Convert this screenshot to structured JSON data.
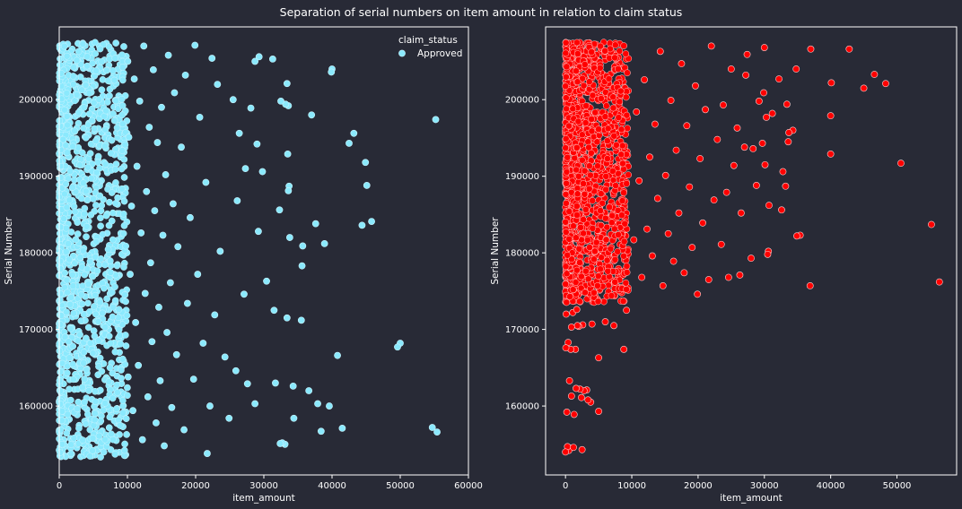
{
  "figure": {
    "title": "Separation of serial numbers on item amount in relation to claim status",
    "background": "#282a36",
    "text_color": "#ffffff"
  },
  "chart_data": [
    {
      "type": "scatter",
      "xlabel": "item_amount",
      "ylabel": "Serial Number",
      "xlim": [
        0,
        60000
      ],
      "ylim": [
        151000,
        209500
      ],
      "xticks": [
        "0",
        "10000",
        "20000",
        "30000",
        "40000",
        "50000",
        "60000"
      ],
      "yticks": [
        "160000",
        "170000",
        "180000",
        "190000",
        "200000"
      ],
      "grid": false,
      "legend": {
        "title": "claim_status",
        "position": "top-right",
        "entries": [
          "Approved"
        ]
      },
      "marker_color": "#8be9fd",
      "marker_edge": "#c8f4ff",
      "dense_region": {
        "x_max": 10000,
        "y_min": 153300,
        "y_max": 207500
      },
      "series": [
        {
          "name": "Approved",
          "points": [
            [
              55200,
              197400
            ],
            [
              55400,
              156600
            ],
            [
              54700,
              157200
            ],
            [
              50000,
              168200
            ],
            [
              49600,
              167700
            ],
            [
              45800,
              184100
            ],
            [
              45100,
              188800
            ],
            [
              44900,
              191800
            ],
            [
              44400,
              183600
            ],
            [
              43200,
              195600
            ],
            [
              42500,
              194300
            ],
            [
              41500,
              157100
            ],
            [
              40800,
              166600
            ],
            [
              40000,
              204000
            ],
            [
              39900,
              203600
            ],
            [
              39600,
              160000
            ],
            [
              38900,
              181200
            ],
            [
              38400,
              156700
            ],
            [
              37900,
              160300
            ],
            [
              37600,
              183800
            ],
            [
              37000,
              198000
            ],
            [
              36600,
              162000
            ],
            [
              35700,
              180900
            ],
            [
              35600,
              178300
            ],
            [
              35500,
              171200
            ],
            [
              34400,
              158400
            ],
            [
              34300,
              162600
            ],
            [
              33800,
              182000
            ],
            [
              33700,
              188700
            ],
            [
              33600,
              188100
            ],
            [
              33600,
              199200
            ],
            [
              33500,
              192900
            ],
            [
              33400,
              202100
            ],
            [
              33400,
              171500
            ],
            [
              33200,
              199400
            ],
            [
              33100,
              155000
            ],
            [
              32700,
              155200
            ],
            [
              32500,
              199800
            ],
            [
              32400,
              155100
            ],
            [
              32300,
              185600
            ],
            [
              31700,
              163000
            ],
            [
              31500,
              172500
            ],
            [
              31300,
              205300
            ],
            [
              30400,
              176300
            ],
            [
              29800,
              190600
            ],
            [
              29300,
              205600
            ],
            [
              29200,
              182800
            ],
            [
              29000,
              194200
            ],
            [
              28700,
              205000
            ],
            [
              28700,
              160300
            ],
            [
              28100,
              198900
            ],
            [
              27600,
              162900
            ],
            [
              27300,
              191000
            ],
            [
              27100,
              174600
            ],
            [
              26400,
              195600
            ],
            [
              26100,
              186800
            ],
            [
              25900,
              164600
            ],
            [
              25500,
              200000
            ],
            [
              24900,
              158400
            ],
            [
              24300,
              166400
            ],
            [
              23600,
              180200
            ],
            [
              23200,
              202000
            ],
            [
              22800,
              171900
            ],
            [
              22400,
              205400
            ],
            [
              22100,
              160000
            ],
            [
              21700,
              153800
            ],
            [
              21500,
              189200
            ],
            [
              21100,
              168200
            ],
            [
              20600,
              197700
            ],
            [
              20300,
              177200
            ],
            [
              19900,
              207100
            ],
            [
              19700,
              163500
            ],
            [
              19200,
              184600
            ],
            [
              18800,
              173400
            ],
            [
              18500,
              203200
            ],
            [
              18300,
              156900
            ],
            [
              17900,
              193800
            ],
            [
              17400,
              180800
            ],
            [
              17200,
              166700
            ],
            [
              16900,
              200900
            ],
            [
              16700,
              186400
            ],
            [
              16500,
              159800
            ],
            [
              16300,
              176100
            ],
            [
              16000,
              205800
            ],
            [
              15800,
              169600
            ],
            [
              15600,
              190200
            ],
            [
              15400,
              154800
            ],
            [
              15200,
              182300
            ],
            [
              15000,
              199000
            ],
            [
              14800,
              163300
            ],
            [
              14600,
              172900
            ],
            [
              14400,
              194400
            ],
            [
              14200,
              157800
            ],
            [
              14000,
              185500
            ],
            [
              13800,
              203900
            ],
            [
              13600,
              168400
            ],
            [
              13400,
              178700
            ],
            [
              13200,
              196400
            ],
            [
              13000,
              161200
            ],
            [
              12800,
              188000
            ],
            [
              12600,
              174700
            ],
            [
              12400,
              207000
            ],
            [
              12200,
              155600
            ],
            [
              12000,
              182600
            ],
            [
              11800,
              199800
            ],
            [
              11600,
              165300
            ],
            [
              11400,
              191300
            ],
            [
              11200,
              170900
            ],
            [
              11000,
              202700
            ],
            [
              10800,
              159400
            ],
            [
              10600,
              186100
            ],
            [
              10400,
              177200
            ],
            [
              10200,
              195100
            ],
            [
              10100,
              163800
            ],
            [
              10050,
              205000
            ]
          ]
        }
      ]
    },
    {
      "type": "scatter",
      "xlabel": "item_amount",
      "ylabel": "Serial Number",
      "xlim": [
        -3000,
        59000
      ],
      "ylim": [
        151000,
        209500
      ],
      "xticks": [
        "0",
        "10000",
        "20000",
        "30000",
        "40000",
        "50000"
      ],
      "yticks": [
        "160000",
        "170000",
        "180000",
        "190000",
        "200000"
      ],
      "grid": false,
      "marker_color": "#ff0000",
      "marker_edge": "#ffd0d0",
      "dense_region": {
        "x_max": 9500,
        "y_min": 173500,
        "y_max": 207500
      },
      "series": [
        {
          "name": "",
          "points": [
            [
              56400,
              176200
            ],
            [
              55200,
              183700
            ],
            [
              50600,
              191700
            ],
            [
              48300,
              202100
            ],
            [
              46600,
              203300
            ],
            [
              45000,
              201500
            ],
            [
              42800,
              206600
            ],
            [
              40100,
              202200
            ],
            [
              40000,
              197900
            ],
            [
              40000,
              192900
            ],
            [
              37000,
              206600
            ],
            [
              36900,
              175700
            ],
            [
              35400,
              182300
            ],
            [
              34900,
              182200
            ],
            [
              34800,
              204000
            ],
            [
              34300,
              196000
            ],
            [
              33700,
              195700
            ],
            [
              33600,
              194500
            ],
            [
              33400,
              199400
            ],
            [
              33200,
              188700
            ],
            [
              32800,
              190600
            ],
            [
              32600,
              185600
            ],
            [
              32200,
              202700
            ],
            [
              31200,
              198200
            ],
            [
              30700,
              186200
            ],
            [
              30600,
              180200
            ],
            [
              30500,
              179800
            ],
            [
              30300,
              197700
            ],
            [
              30100,
              191500
            ],
            [
              30000,
              206800
            ],
            [
              29900,
              200900
            ],
            [
              29700,
              194300
            ],
            [
              29200,
              199800
            ],
            [
              28800,
              188800
            ],
            [
              28300,
              193600
            ],
            [
              28000,
              179300
            ],
            [
              27400,
              205900
            ],
            [
              27200,
              203200
            ],
            [
              27000,
              193800
            ],
            [
              26500,
              185200
            ],
            [
              26300,
              177100
            ],
            [
              25900,
              196300
            ],
            [
              25400,
              191400
            ],
            [
              25000,
              204000
            ],
            [
              24600,
              176800
            ],
            [
              24300,
              187900
            ],
            [
              23800,
              199300
            ],
            [
              23500,
              181100
            ],
            [
              22900,
              194800
            ],
            [
              22400,
              186900
            ],
            [
              22000,
              207000
            ],
            [
              21600,
              176500
            ],
            [
              21100,
              198700
            ],
            [
              20700,
              183900
            ],
            [
              20300,
              192300
            ],
            [
              19900,
              174600
            ],
            [
              19600,
              201800
            ],
            [
              19100,
              180700
            ],
            [
              18700,
              188600
            ],
            [
              18300,
              196600
            ],
            [
              17900,
              177400
            ],
            [
              17500,
              204700
            ],
            [
              17100,
              185200
            ],
            [
              16700,
              193400
            ],
            [
              16300,
              178900
            ],
            [
              15900,
              199900
            ],
            [
              15500,
              182500
            ],
            [
              15100,
              190100
            ],
            [
              14700,
              175700
            ],
            [
              14300,
              206300
            ],
            [
              13900,
              187100
            ],
            [
              13500,
              196800
            ],
            [
              13100,
              179600
            ],
            [
              12700,
              192500
            ],
            [
              12300,
              183100
            ],
            [
              11900,
              202600
            ],
            [
              11500,
              176800
            ],
            [
              11100,
              189400
            ],
            [
              10700,
              198400
            ],
            [
              10300,
              181700
            ],
            [
              9200,
              172500
            ],
            [
              8800,
              167400
            ],
            [
              7300,
              170500
            ],
            [
              6000,
              171000
            ],
            [
              5000,
              166300
            ],
            [
              5000,
              159300
            ],
            [
              4000,
              170700
            ],
            [
              3800,
              160500
            ],
            [
              3400,
              160800
            ],
            [
              3200,
              162100
            ],
            [
              2800,
              162000
            ],
            [
              2600,
              170600
            ],
            [
              2400,
              161100
            ],
            [
              2200,
              162200
            ],
            [
              2000,
              170400
            ],
            [
              1800,
              170500
            ],
            [
              1600,
              162300
            ],
            [
              1500,
              167400
            ],
            [
              1300,
              158900
            ],
            [
              1100,
              172200
            ],
            [
              900,
              161300
            ],
            [
              800,
              167400
            ],
            [
              700,
              154500
            ],
            [
              600,
              163300
            ],
            [
              500,
              154200
            ],
            [
              400,
              168300
            ],
            [
              300,
              154700
            ],
            [
              200,
              159200
            ],
            [
              100,
              172000
            ],
            [
              50,
              167600
            ],
            [
              2500,
              154300
            ],
            [
              1200,
              154600
            ],
            [
              0,
              154000
            ],
            [
              900,
              170300
            ],
            [
              1700,
              172600
            ]
          ]
        }
      ]
    }
  ]
}
